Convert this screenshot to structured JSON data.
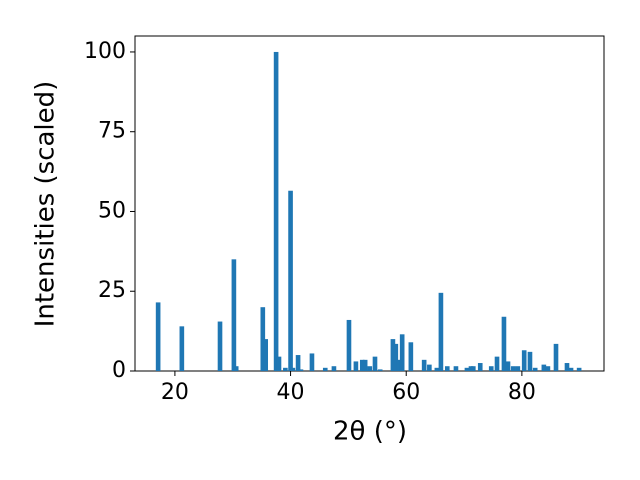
{
  "chart_data": {
    "type": "bar",
    "xlabel": "2θ (°)",
    "ylabel": "Intensities (scaled)",
    "x": [
      17.1,
      21.2,
      27.8,
      30.2,
      30.6,
      35.2,
      35.7,
      37.5,
      38.0,
      39.1,
      40.0,
      40.4,
      41.3,
      41.8,
      43.7,
      46.0,
      47.5,
      50.1,
      51.3,
      52.4,
      52.9,
      53.7,
      54.6,
      55.5,
      57.7,
      58.2,
      58.8,
      59.3,
      60.8,
      63.1,
      64.0,
      65.3,
      66.0,
      67.1,
      68.6,
      70.5,
      71.2,
      71.6,
      72.8,
      74.7,
      75.7,
      76.9,
      77.6,
      78.5,
      79.3,
      80.4,
      81.4,
      82.3,
      83.8,
      84.5,
      85.9,
      87.8,
      88.5,
      89.9
    ],
    "values": [
      21.5,
      14,
      15.5,
      35,
      1.5,
      20,
      10,
      100,
      4.5,
      1,
      56.5,
      1,
      5,
      0.5,
      5.5,
      1,
      1.5,
      16,
      3,
      3.5,
      3.5,
      1.5,
      4.5,
      0.5,
      10,
      8.5,
      3.5,
      11.5,
      9,
      3.5,
      2,
      1,
      24.5,
      1.5,
      1.5,
      1,
      1.5,
      1.5,
      2.5,
      1.5,
      4.5,
      17,
      3,
      1.5,
      1.5,
      6.5,
      6,
      1,
      2,
      1.5,
      8.5,
      2.5,
      1,
      1
    ],
    "color": "#1f77b4",
    "xlim": [
      13.1,
      94.2
    ],
    "xticks": [
      20,
      40,
      60,
      80
    ],
    "ylim": [
      0,
      105
    ],
    "yticks": [
      0,
      25,
      50,
      75,
      100
    ]
  }
}
